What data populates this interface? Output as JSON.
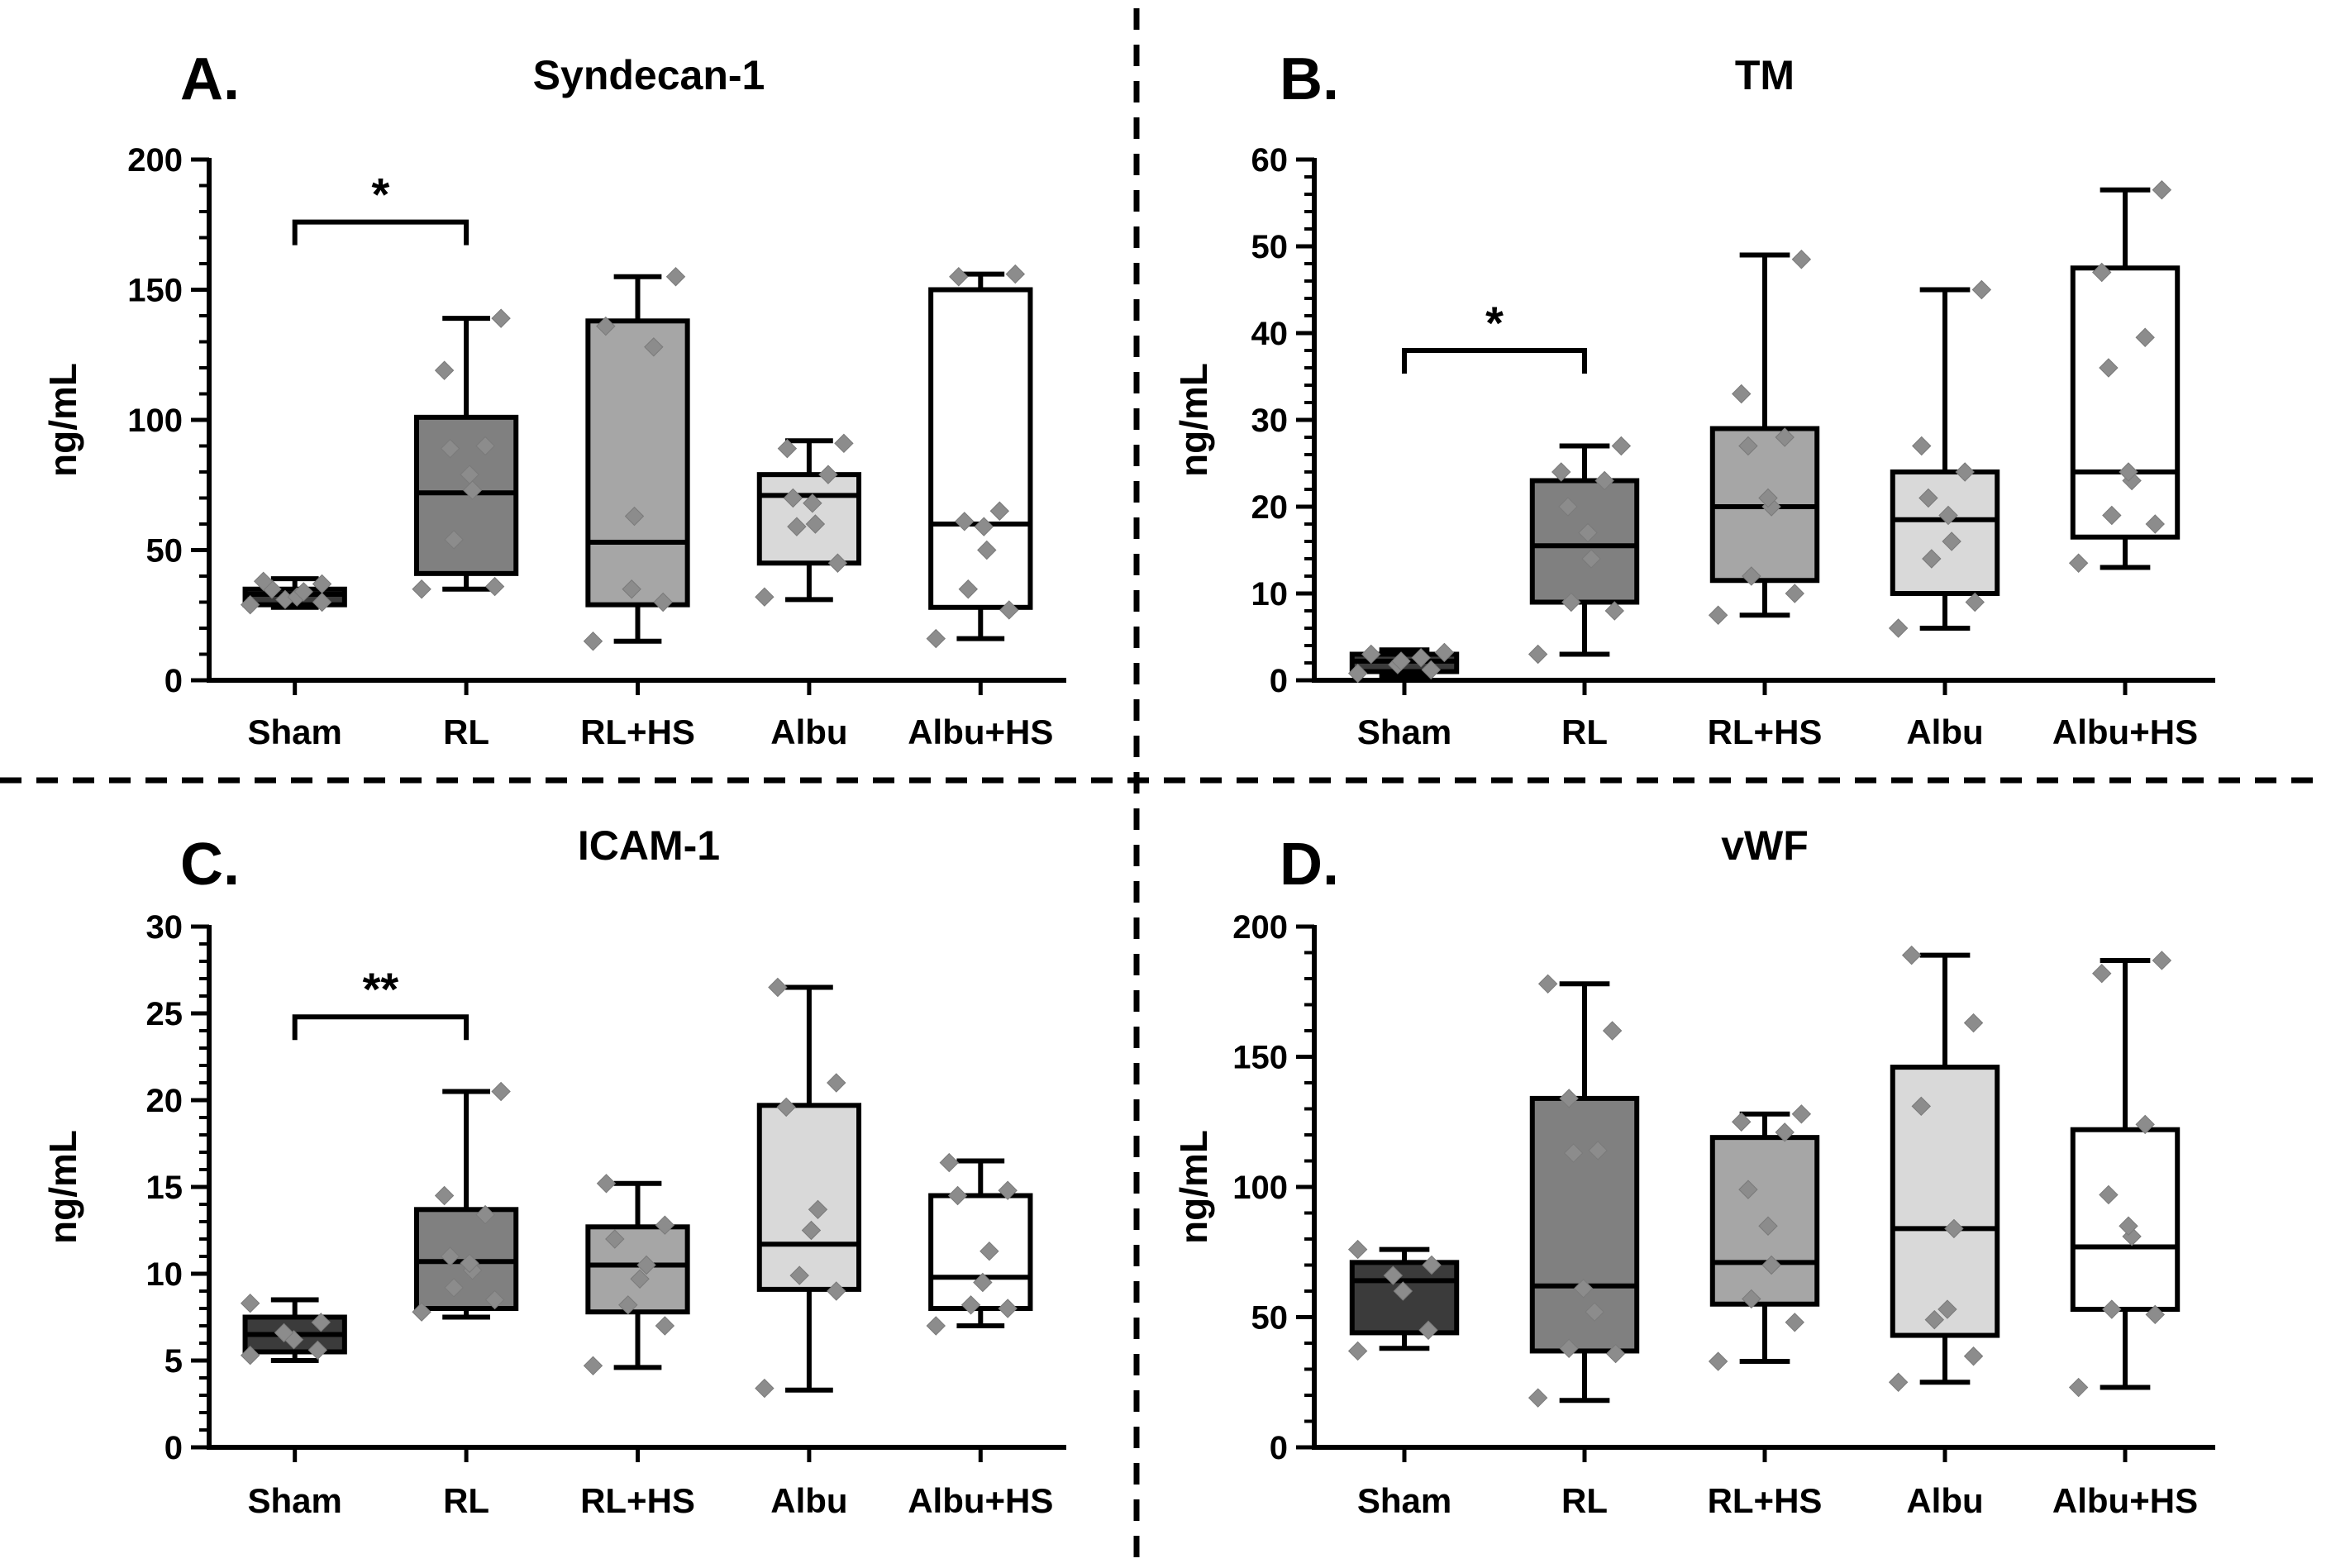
{
  "figure": {
    "dividers": {
      "style": "dashed",
      "color": "#000000"
    },
    "group_fills": {
      "Sham": "#3b3b3b",
      "RL": "#808080",
      "RL+HS": "#a6a6a6",
      "Albu": "#d9d9d9",
      "Albu+HS": "#ffffff"
    },
    "point_color": "#8c8c8c",
    "axis_color": "#000000"
  },
  "chart_data": [
    {
      "panel": "A.",
      "type": "box",
      "title": "Syndecan-1",
      "ylabel": "ng/mL",
      "xlabel": "",
      "ylim": [
        0,
        200
      ],
      "yticks": [
        0,
        50,
        100,
        150,
        200
      ],
      "categories": [
        "Sham",
        "RL",
        "RL+HS",
        "Albu",
        "Albu+HS"
      ],
      "boxes": [
        {
          "category": "Sham",
          "min": 28,
          "q1": 29,
          "median": 33,
          "q3": 35,
          "max": 39,
          "points": [
            29,
            30,
            31,
            32,
            34,
            35,
            37,
            38
          ]
        },
        {
          "category": "RL",
          "min": 35,
          "q1": 41,
          "median": 72,
          "q3": 101,
          "max": 139,
          "points": [
            35,
            36,
            54,
            73,
            79,
            89,
            90,
            119,
            139
          ]
        },
        {
          "category": "RL+HS",
          "min": 15,
          "q1": 29,
          "median": 53,
          "q3": 138,
          "max": 155,
          "points": [
            15,
            30,
            35,
            63,
            128,
            136,
            155
          ]
        },
        {
          "category": "Albu",
          "min": 31,
          "q1": 45,
          "median": 71,
          "q3": 79,
          "max": 92,
          "points": [
            32,
            45,
            59,
            60,
            68,
            70,
            79,
            89,
            91
          ]
        },
        {
          "category": "Albu+HS",
          "min": 16,
          "q1": 28,
          "median": 60,
          "q3": 150,
          "max": 156,
          "points": [
            16,
            27,
            35,
            50,
            59,
            61,
            65,
            155,
            156
          ]
        }
      ],
      "significance": [
        {
          "from": "Sham",
          "to": "RL",
          "label": "*",
          "y": 176
        }
      ]
    },
    {
      "panel": "B.",
      "type": "box",
      "title": "TM",
      "ylabel": "ng/mL",
      "xlabel": "",
      "ylim": [
        0,
        60
      ],
      "yticks": [
        0,
        10,
        20,
        30,
        40,
        50,
        60
      ],
      "categories": [
        "Sham",
        "RL",
        "RL+HS",
        "Albu",
        "Albu+HS"
      ],
      "boxes": [
        {
          "category": "Sham",
          "min": 0.5,
          "q1": 1,
          "median": 2.2,
          "q3": 3,
          "max": 3.5,
          "points": [
            0.8,
            1.2,
            1.8,
            2.2,
            2.6,
            3.0,
            3.2
          ]
        },
        {
          "category": "RL",
          "min": 3,
          "q1": 9,
          "median": 15.5,
          "q3": 23,
          "max": 27,
          "points": [
            3,
            8,
            9,
            14,
            17,
            20,
            23,
            24,
            27
          ]
        },
        {
          "category": "RL+HS",
          "min": 7.5,
          "q1": 11.5,
          "median": 20,
          "q3": 29,
          "max": 49,
          "points": [
            7.5,
            10,
            12,
            20,
            21,
            27,
            28,
            33,
            48.5
          ]
        },
        {
          "category": "Albu",
          "min": 6,
          "q1": 10,
          "median": 18.5,
          "q3": 24,
          "max": 45,
          "points": [
            6,
            9,
            14,
            16,
            19,
            21,
            24,
            27,
            45
          ]
        },
        {
          "category": "Albu+HS",
          "min": 13,
          "q1": 16.5,
          "median": 24,
          "q3": 47.5,
          "max": 56.5,
          "points": [
            13.5,
            18,
            19,
            23,
            24,
            36,
            39.5,
            47,
            56.5
          ]
        }
      ],
      "significance": [
        {
          "from": "Sham",
          "to": "RL",
          "label": "*",
          "y": 38
        }
      ]
    },
    {
      "panel": "C.",
      "type": "box",
      "title": "ICAM-1",
      "ylabel": "ng/mL",
      "xlabel": "",
      "ylim": [
        0,
        30
      ],
      "yticks": [
        0,
        5,
        10,
        15,
        20,
        25,
        30
      ],
      "categories": [
        "Sham",
        "RL",
        "RL+HS",
        "Albu",
        "Albu+HS"
      ],
      "boxes": [
        {
          "category": "Sham",
          "min": 5,
          "q1": 5.5,
          "median": 6.5,
          "q3": 7.5,
          "max": 8.5,
          "points": [
            5.3,
            5.6,
            6.2,
            6.6,
            7.2,
            8.3
          ]
        },
        {
          "category": "RL",
          "min": 7.5,
          "q1": 8,
          "median": 10.7,
          "q3": 13.7,
          "max": 20.5,
          "points": [
            7.8,
            8.5,
            9.2,
            10.2,
            10.6,
            11,
            13.4,
            14.5,
            20.5
          ]
        },
        {
          "category": "RL+HS",
          "min": 4.6,
          "q1": 7.8,
          "median": 10.5,
          "q3": 12.7,
          "max": 15.2,
          "points": [
            4.7,
            7,
            8.2,
            9.7,
            10.5,
            12,
            12.8,
            15.2
          ]
        },
        {
          "category": "Albu",
          "min": 3.3,
          "q1": 9.1,
          "median": 11.7,
          "q3": 19.7,
          "max": 26.5,
          "points": [
            3.4,
            9,
            9.9,
            12.5,
            13.7,
            19.6,
            21,
            26.5
          ]
        },
        {
          "category": "Albu+HS",
          "min": 7,
          "q1": 8,
          "median": 9.8,
          "q3": 14.5,
          "max": 16.5,
          "points": [
            7,
            8,
            8.2,
            9.5,
            11.3,
            14.5,
            14.8,
            16.4
          ]
        }
      ],
      "significance": [
        {
          "from": "Sham",
          "to": "RL",
          "label": "**",
          "y": 24.8
        }
      ]
    },
    {
      "panel": "D.",
      "type": "box",
      "title": "vWF",
      "ylabel": "ng/mL",
      "xlabel": "",
      "ylim": [
        0,
        200
      ],
      "yticks": [
        0,
        50,
        100,
        150,
        200
      ],
      "categories": [
        "Sham",
        "RL",
        "RL+HS",
        "Albu",
        "Albu+HS"
      ],
      "boxes": [
        {
          "category": "Sham",
          "min": 38,
          "q1": 44,
          "median": 64,
          "q3": 71,
          "max": 76,
          "points": [
            37,
            45,
            60,
            66,
            70,
            76
          ]
        },
        {
          "category": "RL",
          "min": 18,
          "q1": 37,
          "median": 62,
          "q3": 134,
          "max": 178,
          "points": [
            19,
            36,
            38,
            52,
            61,
            113,
            114,
            134,
            160,
            178
          ]
        },
        {
          "category": "RL+HS",
          "min": 33,
          "q1": 55,
          "median": 71,
          "q3": 119,
          "max": 128,
          "points": [
            33,
            48,
            57,
            70,
            85,
            99,
            121,
            125,
            128
          ]
        },
        {
          "category": "Albu",
          "min": 25,
          "q1": 43,
          "median": 84,
          "q3": 146,
          "max": 189,
          "points": [
            25,
            35,
            49,
            53,
            84,
            131,
            163,
            189
          ]
        },
        {
          "category": "Albu+HS",
          "min": 23,
          "q1": 53,
          "median": 77,
          "q3": 122,
          "max": 187,
          "points": [
            23,
            51,
            53,
            81,
            85,
            97,
            124,
            182,
            187
          ]
        }
      ],
      "significance": []
    }
  ]
}
